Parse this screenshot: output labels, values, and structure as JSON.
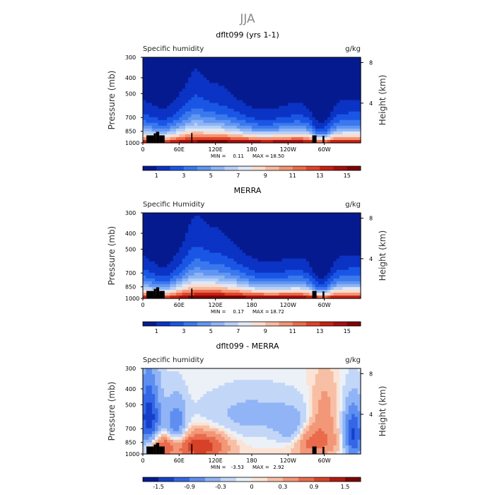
{
  "figure": {
    "title": "JJA"
  },
  "colors": {
    "humidity_scale": [
      "#061a90",
      "#0b33c4",
      "#1a56e6",
      "#3b78ee",
      "#6196f2",
      "#8db4f5",
      "#b8d0f7",
      "#dfe8f6",
      "#f8ddd0",
      "#f7b9a1",
      "#f39473",
      "#ec6a48",
      "#e0432a",
      "#c42214",
      "#a50f0f",
      "#7d0505"
    ],
    "diff_scale": [
      "#061a90",
      "#1540c9",
      "#3467e6",
      "#5e8ff0",
      "#90b4f5",
      "#c2d6f8",
      "#ecf1f7",
      "#fbe3d5",
      "#f7bfa5",
      "#f29778",
      "#e96b4c",
      "#d74128",
      "#b11b12",
      "#7d0505"
    ],
    "terrain": "#000000"
  },
  "chart_data": [
    {
      "type": "heatmap",
      "title": "dflt099 (yrs 1-1)",
      "subtitle_left": "Specific humidity",
      "subtitle_right": "g/kg",
      "ylabel": "Pressure (mb)",
      "ylabel_right": "Height (km)",
      "x_ticks": [
        "0",
        "60E",
        "120E",
        "180",
        "120W",
        "60W"
      ],
      "x_tick_lon": [
        0,
        60,
        120,
        180,
        240,
        300
      ],
      "xlim": [
        0,
        360
      ],
      "y_ticks": [
        "300",
        "400",
        "500",
        "700",
        "850",
        "1000"
      ],
      "y_tick_values": [
        300,
        400,
        500,
        700,
        850,
        1000
      ],
      "ylim": [
        300,
        1000
      ],
      "right_ticks": [
        "8",
        "4"
      ],
      "right_tick_values": [
        8,
        4
      ],
      "min_label": "MIN =",
      "min_value": "0.11",
      "max_label": "MAX =",
      "max_value": "18.50",
      "colorbar_labels": [
        "1",
        "3",
        "5",
        "7",
        "9",
        "11",
        "13",
        "15"
      ],
      "colorbar_levels": [
        0,
        1,
        2,
        3,
        4,
        5,
        6,
        7,
        8,
        9,
        10,
        11,
        12,
        13,
        14,
        15,
        16
      ],
      "field": "humidity",
      "variant": 0
    },
    {
      "type": "heatmap",
      "title": "MERRA",
      "subtitle_left": "Specific Humidity",
      "subtitle_right": "g/kg",
      "ylabel": "Pressure (mb)",
      "ylabel_right": "Height (km)",
      "x_ticks": [
        "0",
        "60E",
        "120E",
        "180",
        "120W",
        "60W"
      ],
      "x_tick_lon": [
        0,
        60,
        120,
        180,
        240,
        300
      ],
      "xlim": [
        0,
        360
      ],
      "y_ticks": [
        "300",
        "400",
        "500",
        "700",
        "850",
        "1000"
      ],
      "y_tick_values": [
        300,
        400,
        500,
        700,
        850,
        1000
      ],
      "ylim": [
        300,
        1000
      ],
      "right_ticks": [
        "8",
        "4"
      ],
      "right_tick_values": [
        8,
        4
      ],
      "min_label": "MIN =",
      "min_value": "0.17",
      "max_label": "MAX =",
      "max_value": "18.72",
      "colorbar_labels": [
        "1",
        "3",
        "5",
        "7",
        "9",
        "11",
        "13",
        "15"
      ],
      "colorbar_levels": [
        0,
        1,
        2,
        3,
        4,
        5,
        6,
        7,
        8,
        9,
        10,
        11,
        12,
        13,
        14,
        15,
        16
      ],
      "field": "humidity",
      "variant": 1
    },
    {
      "type": "heatmap",
      "title": "dflt099 - MERRA",
      "subtitle_left": "Specific humidity",
      "subtitle_right": "g/kg",
      "ylabel": "Pressure (mb)",
      "ylabel_right": "Height (km)",
      "x_ticks": [
        "0",
        "60E",
        "120E",
        "180",
        "120W",
        "60W"
      ],
      "x_tick_lon": [
        0,
        60,
        120,
        180,
        240,
        300
      ],
      "xlim": [
        0,
        360
      ],
      "y_ticks": [
        "300",
        "400",
        "500",
        "700",
        "850",
        "1000"
      ],
      "y_tick_values": [
        300,
        400,
        500,
        700,
        850,
        1000
      ],
      "ylim": [
        300,
        1000
      ],
      "right_ticks": [
        "8",
        "4"
      ],
      "right_tick_values": [
        8,
        4
      ],
      "min_label": "MIN =",
      "min_value": "-3.53",
      "max_label": "MAX =",
      "max_value": "2.92",
      "colorbar_labels": [
        "-1.5",
        "-0.9",
        "-0.3",
        "0",
        "0.3",
        "0.9",
        "1.5"
      ],
      "colorbar_levels": [
        -1.8,
        -1.5,
        -1.2,
        -0.9,
        -0.6,
        -0.3,
        -0.1,
        0,
        0.1,
        0.3,
        0.6,
        0.9,
        1.2,
        1.5,
        1.8
      ],
      "field": "difference",
      "variant": 2
    }
  ]
}
